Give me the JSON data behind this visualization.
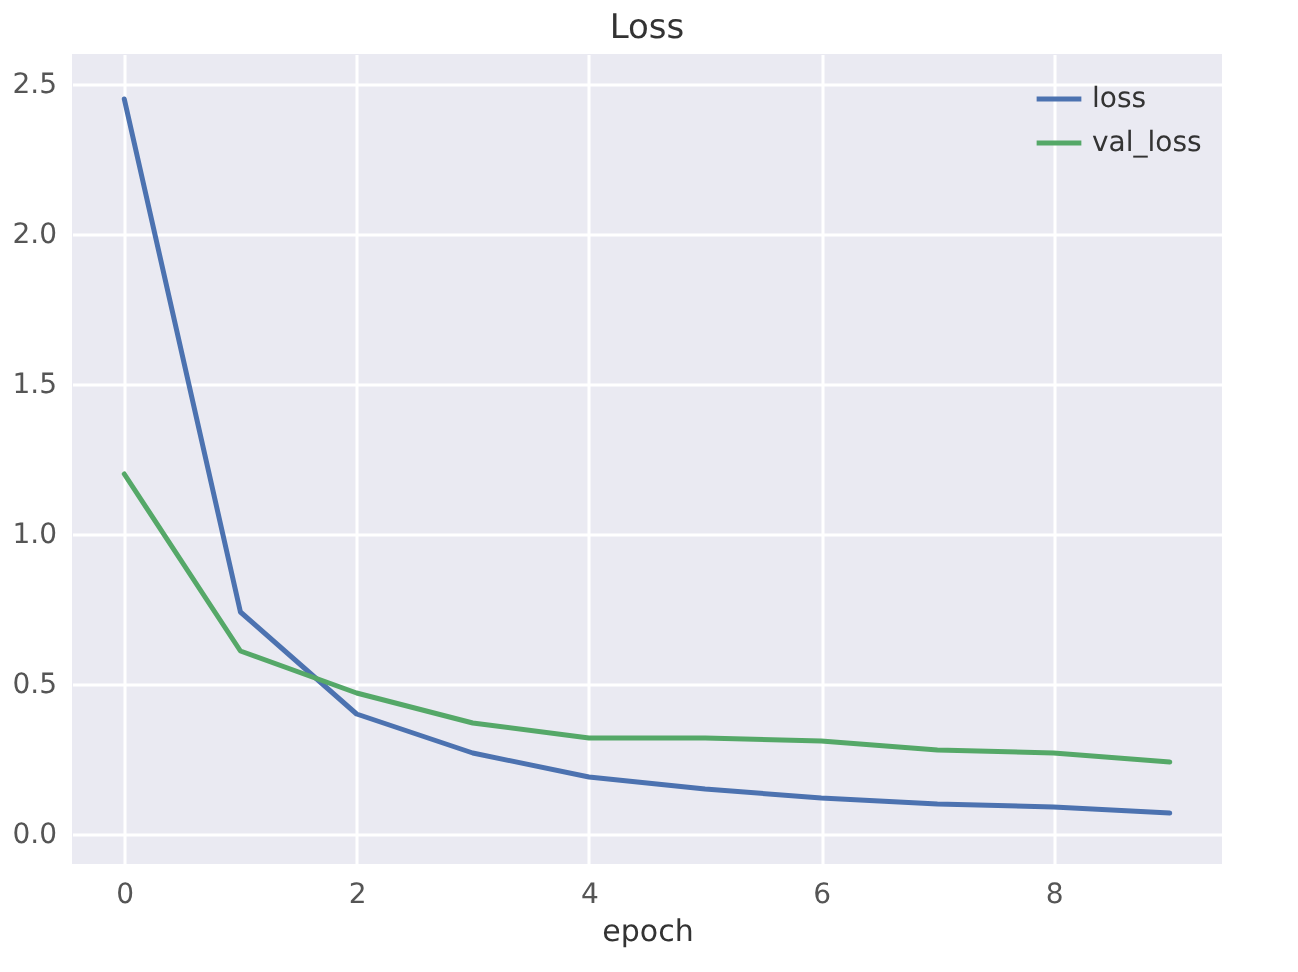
{
  "chart_data": {
    "type": "line",
    "title": "Loss",
    "xlabel": "epoch",
    "x": [
      0,
      1,
      2,
      3,
      4,
      5,
      6,
      7,
      8,
      9
    ],
    "series": [
      {
        "name": "loss",
        "color": "#4c72b0",
        "values": [
          2.45,
          0.74,
          0.4,
          0.27,
          0.19,
          0.15,
          0.12,
          0.1,
          0.09,
          0.07
        ]
      },
      {
        "name": "val_loss",
        "color": "#55a868",
        "values": [
          1.2,
          0.61,
          0.47,
          0.37,
          0.32,
          0.32,
          0.31,
          0.28,
          0.27,
          0.24
        ]
      }
    ],
    "xlim": [
      -0.45,
      9.45
    ],
    "xticks": [
      0,
      2,
      4,
      6,
      8
    ],
    "ylim": [
      -0.1,
      2.6
    ],
    "yticks": [
      {
        "value": 0,
        "label": "0.0"
      },
      0.5,
      {
        "value": 1,
        "label": "1.0"
      },
      1.5,
      {
        "value": 2,
        "label": "2.0"
      },
      2.5
    ],
    "grid": true,
    "legend": "top right",
    "line_style": "solid"
  }
}
